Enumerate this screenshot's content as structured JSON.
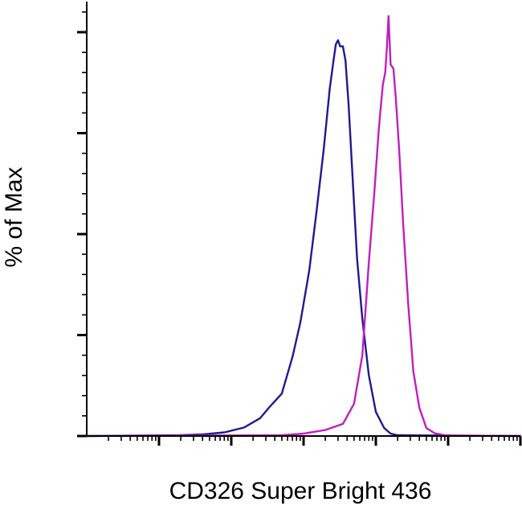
{
  "chart_data": {
    "type": "line",
    "title": "",
    "xlabel": "CD326 Super Bright 436",
    "ylabel": "% of Max",
    "xscale": "log",
    "xlim": [
      10,
      10000000
    ],
    "ylim": [
      0,
      100
    ],
    "grid": false,
    "legend": "none",
    "series": [
      {
        "color": "#1f1a8f",
        "x": [
          200,
          400,
          800,
          1500,
          2500,
          3500,
          5000,
          7000,
          9000,
          12000,
          15000,
          19000,
          23000,
          26000,
          28000,
          30000,
          32000,
          35000,
          38000,
          42000,
          47000,
          55000,
          65000,
          80000,
          100000,
          130000,
          160000,
          200000
        ],
        "y": [
          0.2,
          0.4,
          0.9,
          2.1,
          4.4,
          7.5,
          10.5,
          19.5,
          28,
          41,
          55,
          71,
          86,
          93,
          97,
          98,
          96.5,
          96.5,
          93,
          82,
          66,
          44,
          29,
          15,
          6,
          2,
          0.6,
          0.2
        ]
      },
      {
        "color": "#c01fbd",
        "x": [
          5000,
          10000,
          20000,
          35000,
          50000,
          65000,
          80000,
          95000,
          110000,
          125000,
          135000,
          142000,
          150000,
          160000,
          175000,
          190000,
          210000,
          240000,
          280000,
          330000,
          400000,
          500000,
          650000,
          900000,
          1500000
        ],
        "y": [
          0.2,
          0.6,
          1.5,
          3,
          8,
          20,
          43,
          60,
          76,
          87,
          90,
          96,
          104,
          92,
          91,
          83,
          71,
          52,
          33,
          16,
          7,
          2,
          0.7,
          0.2,
          0.1
        ]
      }
    ]
  }
}
